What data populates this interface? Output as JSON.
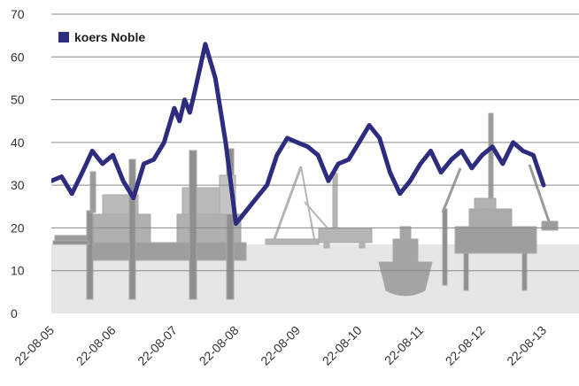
{
  "chart_data": {
    "type": "line",
    "title": "",
    "xlabel": "",
    "ylabel": "",
    "ylim": [
      0,
      70
    ],
    "y_ticks": [
      "0",
      "10",
      "20",
      "30",
      "40",
      "50",
      "60",
      "70"
    ],
    "x_ticks": [
      "22-08-05",
      "22-08-06",
      "22-08-07",
      "22-08-08",
      "22-08-09",
      "22-08-10",
      "22-08-11",
      "22-08-12",
      "22-08-13"
    ],
    "grid": "horizontal",
    "legend_position": "top-left",
    "background": "grey silhouettes of offshore drilling rigs, platforms and a drill ship",
    "colors": {
      "line": "#2e2c7e",
      "grid": "#8a8a8a",
      "band": "#e6e6e6",
      "silhouette": "#a8a8a8"
    },
    "series": [
      {
        "name": "koers Noble",
        "x": [
          "2005-08-22",
          "2005-10-22",
          "2005-12-22",
          "2006-02-22",
          "2006-04-22",
          "2006-06-22",
          "2006-08-22",
          "2006-10-22",
          "2006-12-22",
          "2007-02-22",
          "2007-04-22",
          "2007-06-22",
          "2007-08-22",
          "2007-09-22",
          "2007-10-22",
          "2007-11-22",
          "2007-12-22",
          "2008-02-22",
          "2008-04-22",
          "2008-06-22",
          "2008-08-22",
          "2008-10-22",
          "2008-12-22",
          "2009-02-22",
          "2009-04-22",
          "2009-06-22",
          "2009-08-22",
          "2009-10-22",
          "2009-12-22",
          "2010-02-22",
          "2010-04-22",
          "2010-06-22",
          "2010-08-22",
          "2010-10-22",
          "2010-12-22",
          "2011-02-22",
          "2011-04-22",
          "2011-06-22",
          "2011-08-22",
          "2011-10-22",
          "2011-12-22",
          "2012-02-22",
          "2012-04-22",
          "2012-06-22",
          "2012-08-22",
          "2012-10-22",
          "2012-12-22",
          "2013-02-22",
          "2013-04-22",
          "2013-06-22",
          "2013-08-22"
        ],
        "values": [
          31,
          32,
          28,
          33,
          38,
          35,
          37,
          31,
          27,
          35,
          36,
          40,
          48,
          45,
          50,
          47,
          52,
          63,
          55,
          40,
          21,
          24,
          27,
          30,
          37,
          41,
          40,
          39,
          37,
          31,
          35,
          36,
          40,
          44,
          41,
          33,
          28,
          31,
          35,
          38,
          33,
          36,
          38,
          34,
          37,
          39,
          35,
          40,
          38,
          37,
          30
        ]
      }
    ]
  }
}
